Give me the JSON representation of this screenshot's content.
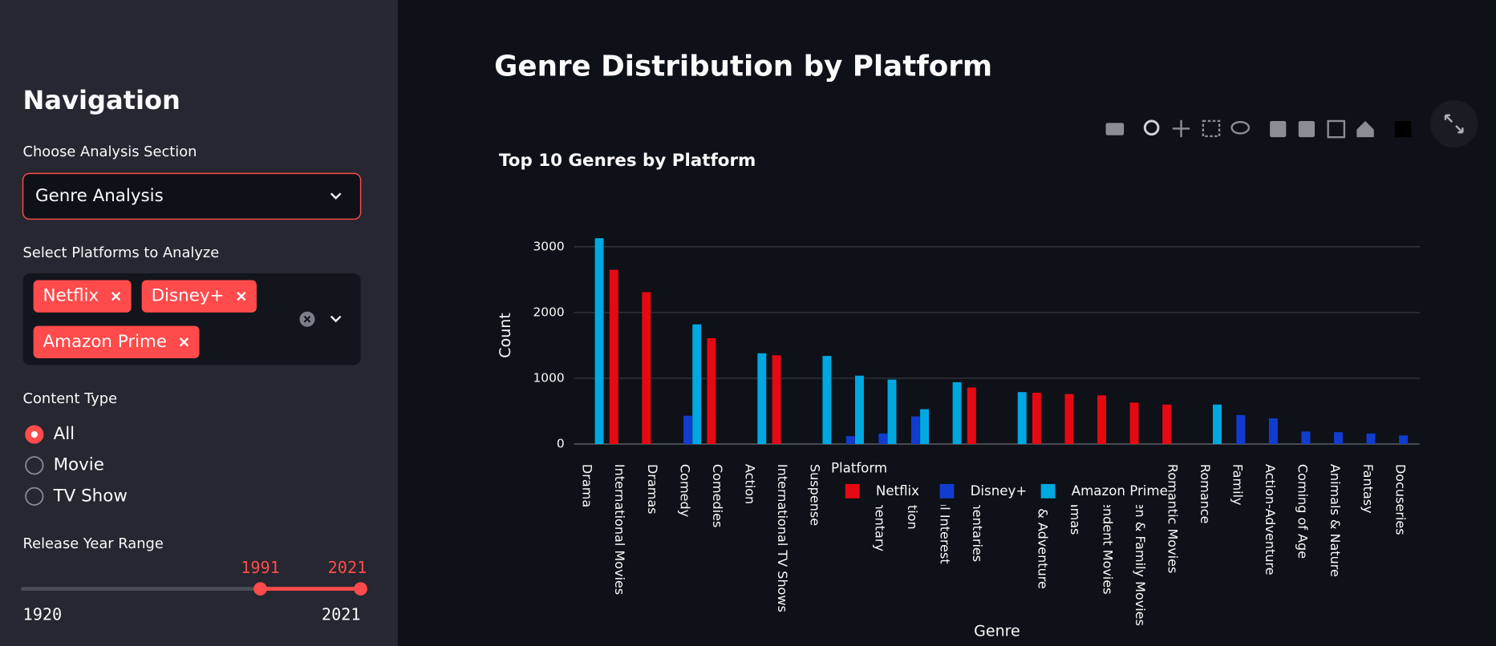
{
  "sidebar": {
    "heading": "Navigation",
    "analysis_label": "Choose Analysis Section",
    "analysis_value": "Genre Analysis",
    "platforms_label": "Select Platforms to Analyze",
    "platforms": [
      "Netflix",
      "Disney+",
      "Amazon Prime"
    ],
    "content_type_label": "Content Type",
    "content_type_options": [
      "All",
      "Movie",
      "TV Show"
    ],
    "content_type_selected": 0,
    "year_label": "Release Year Range",
    "year_min": 1920,
    "year_max": 2021,
    "year_range": [
      1991,
      2021
    ]
  },
  "page_title": "Genre Distribution by Platform",
  "chart_data": {
    "type": "bar",
    "title": "Top 10 Genres by Platform",
    "x_label": "Genre",
    "y_label": "Count",
    "legend_title": "Platform",
    "categories": [
      "Drama",
      "International Movies",
      "Dramas",
      "Comedy",
      "Comedies",
      "Action",
      "International TV Shows",
      "Suspense",
      null,
      "Documentary",
      "Animation",
      "Special Interest",
      "Documentaries",
      null,
      "Action & Adventure",
      "TV Dramas",
      "Independent Movies",
      "Children & Family Movies",
      "Romantic Movies",
      "Romance",
      "Family",
      "Action-Adventure",
      "Coming of Age",
      "Animals & Nature",
      "Fantasy",
      "Docuseries"
    ],
    "series": [
      {
        "name": "Netflix",
        "color": "#e50914",
        "values": [
          null,
          2650,
          2310,
          null,
          1610,
          null,
          1350,
          null,
          null,
          null,
          null,
          null,
          860,
          null,
          780,
          760,
          740,
          630,
          600,
          null,
          null,
          null,
          null,
          null,
          null,
          null
        ]
      },
      {
        "name": "Disney+",
        "color": "#113ccf",
        "values": [
          null,
          null,
          null,
          430,
          null,
          null,
          null,
          null,
          120,
          160,
          420,
          null,
          null,
          null,
          null,
          null,
          null,
          null,
          null,
          null,
          440,
          390,
          190,
          180,
          160,
          130
        ]
      },
      {
        "name": "Amazon Prime",
        "color": "#00a8e1",
        "values": [
          3130,
          null,
          null,
          1820,
          null,
          1380,
          null,
          1340,
          1040,
          980,
          530,
          940,
          null,
          790,
          null,
          null,
          null,
          null,
          null,
          600,
          null,
          null,
          null,
          null,
          null,
          null
        ]
      }
    ],
    "ylim": [
      0,
      3300
    ],
    "yticks": [
      0,
      1000,
      2000,
      3000
    ],
    "grid": true
  }
}
